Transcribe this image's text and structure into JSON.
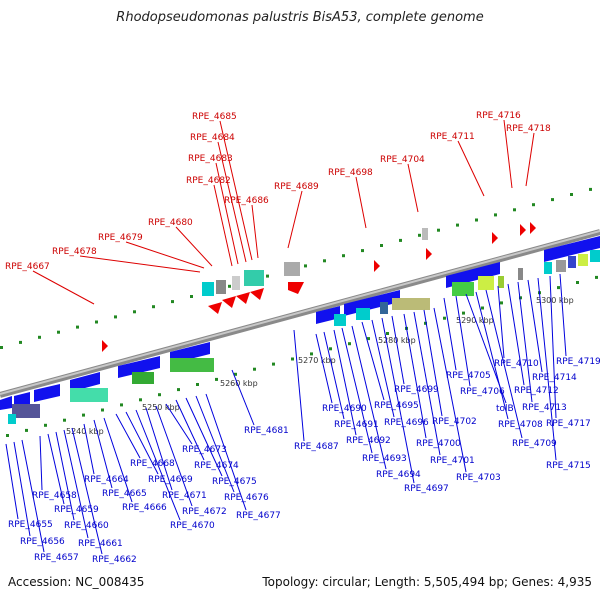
{
  "title": "Rhodopseudomonas palustris BisA53, complete genome",
  "footer": {
    "accession": "Accession: NC_008435",
    "stats": "Topology: circular; Length: 5,505,494 bp; Genes: 4,935"
  },
  "colors": {
    "forward": "#ee0000",
    "reverse": "#0000dd",
    "top_label": "#cc0000",
    "bottom_label": "#0000cc",
    "backbone": "#999999"
  },
  "kbp_labels": [
    "5240 kbp",
    "5250 kbp",
    "5260 kbp",
    "5270 kbp",
    "5280 kbp",
    "5290 kbp",
    "5300 kbp"
  ],
  "top_genes": [
    "RPE_4667",
    "RPE_4678",
    "RPE_4679",
    "RPE_4680",
    "RPE_4682",
    "RPE_4683",
    "RPE_4684",
    "RPE_4685",
    "RPE_4686",
    "RPE_4689",
    "RPE_4698",
    "RPE_4704",
    "RPE_4711",
    "RPE_4716",
    "RPE_4718"
  ],
  "bottom_genes": [
    "RPE_4655",
    "RPE_4656",
    "RPE_4657",
    "RPE_4658",
    "RPE_4659",
    "RPE_4660",
    "RPE_4661",
    "RPE_4662",
    "RPE_4664",
    "RPE_4665",
    "RPE_4666",
    "RPE_4668",
    "RPE_4669",
    "RPE_4670",
    "RPE_4671",
    "RPE_4672",
    "RPE_4673",
    "RPE_4674",
    "RPE_4675",
    "RPE_4676",
    "RPE_4677",
    "RPE_4681",
    "RPE_4687",
    "RPE_4690",
    "RPE_4691",
    "RPE_4692",
    "RPE_4693",
    "RPE_4694",
    "RPE_4695",
    "RPE_4696",
    "RPE_4697",
    "RPE_4699",
    "RPE_4700",
    "RPE_4701",
    "RPE_4702",
    "RPE_4703",
    "RPE_4705",
    "RPE_4706",
    "tolB",
    "RPE_4708",
    "RPE_4709",
    "RPE_4710",
    "RPE_4712",
    "RPE_4713",
    "RPE_4714",
    "RPE_4715",
    "RPE_4717",
    "RPE_4719"
  ]
}
